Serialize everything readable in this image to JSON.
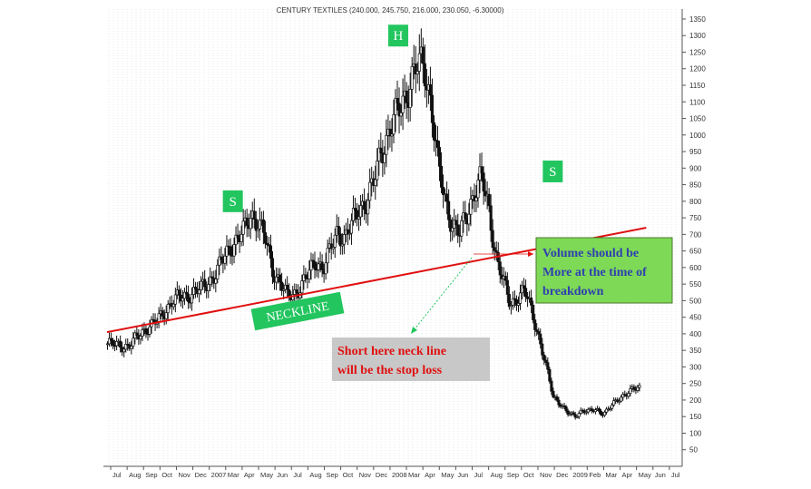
{
  "chart_data": {
    "type": "candlestick",
    "title": "CENTURY TEXTILES (240.000, 245.750, 216.000, 230.050, -6.30000)",
    "y_ticks": [
      50,
      100,
      150,
      200,
      250,
      300,
      350,
      400,
      450,
      500,
      550,
      600,
      650,
      700,
      750,
      800,
      850,
      900,
      950,
      1000,
      1050,
      1100,
      1150,
      1200,
      1250,
      1300,
      1350
    ],
    "ylim": [
      0,
      1380
    ],
    "x_tick_labels": [
      "Jul",
      "Aug",
      "Sep",
      "Oct",
      "Nov",
      "Dec",
      "2007",
      "Mar",
      "Apr",
      "May",
      "Jun",
      "Jul",
      "Aug",
      "Sep",
      "Oct",
      "Nov",
      "Dec",
      "2008",
      "Mar",
      "Apr",
      "May",
      "Jun",
      "Jul",
      "Aug",
      "Sep",
      "Oct",
      "Nov",
      "Dec",
      "2009",
      "Feb",
      "Mar",
      "Apr",
      "May",
      "Jun",
      "Jul"
    ],
    "grid": true,
    "price_path": [
      [
        0,
        370
      ],
      [
        3,
        362
      ],
      [
        5,
        410
      ],
      [
        7,
        440
      ],
      [
        9,
        500
      ],
      [
        11,
        515
      ],
      [
        13,
        535
      ],
      [
        15,
        580
      ],
      [
        17,
        660
      ],
      [
        19,
        710
      ],
      [
        20,
        760
      ],
      [
        21,
        740
      ],
      [
        22,
        680
      ],
      [
        23,
        590
      ],
      [
        24,
        560
      ],
      [
        25,
        510
      ],
      [
        26,
        520
      ],
      [
        27,
        550
      ],
      [
        28,
        580
      ],
      [
        29,
        620
      ],
      [
        30,
        600
      ],
      [
        31,
        650
      ],
      [
        32,
        710
      ],
      [
        33,
        690
      ],
      [
        34,
        730
      ],
      [
        35,
        780
      ],
      [
        36,
        800
      ],
      [
        37,
        850
      ],
      [
        38,
        950
      ],
      [
        39,
        1000
      ],
      [
        40,
        1050
      ],
      [
        41,
        1100
      ],
      [
        42,
        1150
      ],
      [
        43,
        1200
      ],
      [
        44,
        1220
      ],
      [
        45,
        1100
      ],
      [
        46,
        900
      ],
      [
        47,
        800
      ],
      [
        48,
        730
      ],
      [
        49,
        700
      ],
      [
        50,
        760
      ],
      [
        51,
        830
      ],
      [
        52,
        870
      ],
      [
        53,
        780
      ],
      [
        54,
        640
      ],
      [
        55,
        560
      ],
      [
        56,
        490
      ],
      [
        57,
        510
      ],
      [
        58,
        530
      ],
      [
        59,
        470
      ],
      [
        60,
        390
      ],
      [
        61,
        300
      ],
      [
        62,
        210
      ],
      [
        63,
        190
      ],
      [
        64,
        160
      ],
      [
        65,
        150
      ],
      [
        66,
        170
      ],
      [
        67,
        165
      ],
      [
        68,
        170
      ],
      [
        69,
        160
      ],
      [
        70,
        180
      ],
      [
        71,
        200
      ],
      [
        72,
        220
      ],
      [
        73,
        230
      ],
      [
        74,
        235
      ]
    ],
    "neckline": {
      "start": [
        0,
        405
      ],
      "end": [
        75,
        720
      ],
      "label": "NECKLINE"
    },
    "pattern_labels": [
      {
        "text": "S",
        "at": [
          17.5,
          800
        ]
      },
      {
        "text": "H",
        "at": [
          40.5,
          1300
        ]
      },
      {
        "text": "S",
        "at": [
          62,
          890
        ]
      }
    ],
    "annotations": [
      {
        "text": "Volume should be More at the time of breakdown",
        "lines": [
          "Volume should be",
          "More at the time of",
          "breakdown"
        ],
        "color": "#2f3fb0",
        "background": "#7ed957"
      },
      {
        "text": "Short here neck line will be the stop loss",
        "lines": [
          "Short here neck line",
          "will be the stop loss"
        ],
        "color": "#e01010",
        "background": "#c8c8c8"
      }
    ]
  }
}
